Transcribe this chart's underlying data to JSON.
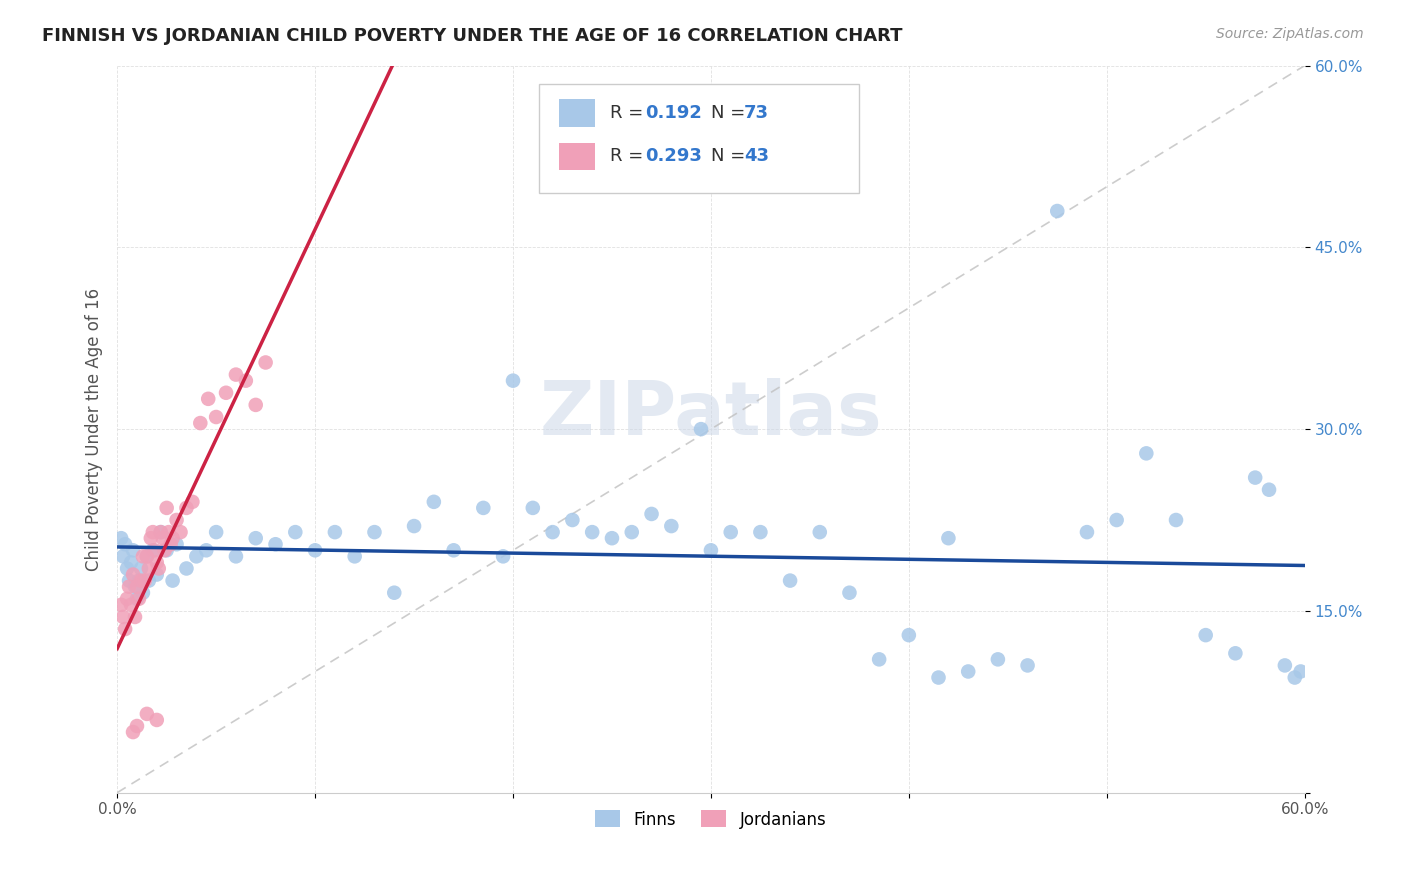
{
  "title": "FINNISH VS JORDANIAN CHILD POVERTY UNDER THE AGE OF 16 CORRELATION CHART",
  "source": "Source: ZipAtlas.com",
  "ylabel": "Child Poverty Under the Age of 16",
  "xlim": [
    0.0,
    0.6
  ],
  "ylim": [
    0.0,
    0.6
  ],
  "background_color": "#ffffff",
  "grid_color": "#e0e0e0",
  "R_finns": 0.192,
  "N_finns": 73,
  "R_jordanians": 0.293,
  "N_jordanians": 43,
  "finns_color": "#a8c8e8",
  "jordanians_color": "#f0a0b8",
  "finns_line_color": "#1a4a9a",
  "jordanians_line_color": "#cc2244",
  "legend_label_finns": "Finns",
  "legend_label_jordanians": "Jordanians",
  "finns_x": [
    0.002,
    0.003,
    0.004,
    0.005,
    0.006,
    0.007,
    0.008,
    0.009,
    0.01,
    0.011,
    0.012,
    0.013,
    0.015,
    0.016,
    0.018,
    0.02,
    0.022,
    0.025,
    0.028,
    0.03,
    0.035,
    0.04,
    0.045,
    0.05,
    0.06,
    0.07,
    0.08,
    0.09,
    0.1,
    0.11,
    0.12,
    0.13,
    0.14,
    0.15,
    0.16,
    0.17,
    0.185,
    0.195,
    0.21,
    0.22,
    0.23,
    0.24,
    0.25,
    0.26,
    0.27,
    0.28,
    0.295,
    0.31,
    0.325,
    0.34,
    0.355,
    0.37,
    0.385,
    0.4,
    0.415,
    0.43,
    0.445,
    0.46,
    0.475,
    0.49,
    0.505,
    0.52,
    0.535,
    0.55,
    0.565,
    0.575,
    0.582,
    0.59,
    0.595,
    0.598,
    0.42,
    0.3,
    0.2
  ],
  "finns_y": [
    0.21,
    0.195,
    0.205,
    0.185,
    0.175,
    0.19,
    0.2,
    0.17,
    0.16,
    0.175,
    0.185,
    0.165,
    0.195,
    0.175,
    0.2,
    0.18,
    0.215,
    0.2,
    0.175,
    0.205,
    0.185,
    0.195,
    0.2,
    0.215,
    0.195,
    0.21,
    0.205,
    0.215,
    0.2,
    0.215,
    0.195,
    0.215,
    0.165,
    0.22,
    0.24,
    0.2,
    0.235,
    0.195,
    0.235,
    0.215,
    0.225,
    0.215,
    0.21,
    0.215,
    0.23,
    0.22,
    0.3,
    0.215,
    0.215,
    0.175,
    0.215,
    0.165,
    0.11,
    0.13,
    0.095,
    0.1,
    0.11,
    0.105,
    0.48,
    0.215,
    0.225,
    0.28,
    0.225,
    0.13,
    0.115,
    0.26,
    0.25,
    0.105,
    0.095,
    0.1,
    0.21,
    0.2,
    0.34
  ],
  "jordanians_x": [
    0.002,
    0.003,
    0.004,
    0.005,
    0.006,
    0.007,
    0.008,
    0.009,
    0.01,
    0.011,
    0.012,
    0.013,
    0.014,
    0.015,
    0.016,
    0.017,
    0.018,
    0.019,
    0.02,
    0.021,
    0.022,
    0.023,
    0.024,
    0.025,
    0.026,
    0.027,
    0.028,
    0.03,
    0.032,
    0.035,
    0.038,
    0.042,
    0.046,
    0.05,
    0.055,
    0.06,
    0.065,
    0.07,
    0.075,
    0.015,
    0.01,
    0.008,
    0.02
  ],
  "jordanians_y": [
    0.155,
    0.145,
    0.135,
    0.16,
    0.17,
    0.155,
    0.18,
    0.145,
    0.17,
    0.16,
    0.175,
    0.195,
    0.175,
    0.195,
    0.185,
    0.21,
    0.215,
    0.2,
    0.19,
    0.185,
    0.215,
    0.21,
    0.2,
    0.235,
    0.215,
    0.205,
    0.21,
    0.225,
    0.215,
    0.235,
    0.24,
    0.305,
    0.325,
    0.31,
    0.33,
    0.345,
    0.34,
    0.32,
    0.355,
    0.065,
    0.055,
    0.05,
    0.06
  ]
}
